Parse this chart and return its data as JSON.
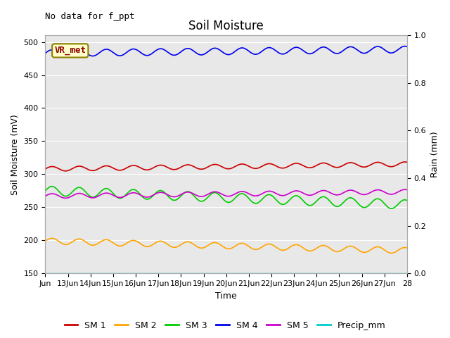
{
  "title": "Soil Moisture",
  "xlabel": "Time",
  "ylabel_left": "Soil Moisture (mV)",
  "ylabel_right": "Rain (mm)",
  "annotation": "No data for f_ppt",
  "vr_label": "VR_met",
  "ylim_left": [
    150,
    510
  ],
  "ylim_right": [
    0.0,
    1.0
  ],
  "yticks_left": [
    150,
    200,
    250,
    300,
    350,
    400,
    450,
    500
  ],
  "yticks_right": [
    0.0,
    0.2,
    0.4,
    0.6,
    0.8,
    1.0
  ],
  "xtick_labels": [
    "Jun",
    "13Jun",
    "14Jun",
    "15Jun",
    "16Jun",
    "17Jun",
    "18Jun",
    "19Jun",
    "20Jun",
    "21Jun",
    "22Jun",
    "23Jun",
    "24Jun",
    "25Jun",
    "26Jun",
    "27Jun",
    "28"
  ],
  "fig_bg_color": "#ffffff",
  "plot_bg_color": "#e8e8e8",
  "grid_color": "#ffffff",
  "series": {
    "SM1": {
      "color": "#cc0000",
      "base": 308,
      "trend": 0.45,
      "amp": 3.5,
      "period": 1.2
    },
    "SM2": {
      "color": "#ffa500",
      "base": 199,
      "trend": -0.9,
      "amp": 4.5,
      "period": 1.2
    },
    "SM3": {
      "color": "#00cc00",
      "base": 275,
      "trend": -1.3,
      "amp": 7,
      "period": 1.2
    },
    "SM4": {
      "color": "#0000ee",
      "base": 483,
      "trend": 0.35,
      "amp": 5,
      "period": 1.2
    },
    "SM5": {
      "color": "#cc00cc",
      "base": 267,
      "trend": 0.4,
      "amp": 3.5,
      "period": 1.2
    },
    "Precip": {
      "color": "#00cccc",
      "base": 150,
      "trend": 0,
      "amp": 0,
      "period": 1
    }
  },
  "legend_labels": [
    "SM 1",
    "SM 2",
    "SM 3",
    "SM 4",
    "SM 5",
    "Precip_mm"
  ],
  "legend_colors": [
    "#cc0000",
    "#ffa500",
    "#00cc00",
    "#0000ee",
    "#cc00cc",
    "#00cccc"
  ],
  "title_fontsize": 12,
  "label_fontsize": 9,
  "tick_fontsize": 8,
  "annot_fontsize": 9,
  "legend_fontsize": 9
}
